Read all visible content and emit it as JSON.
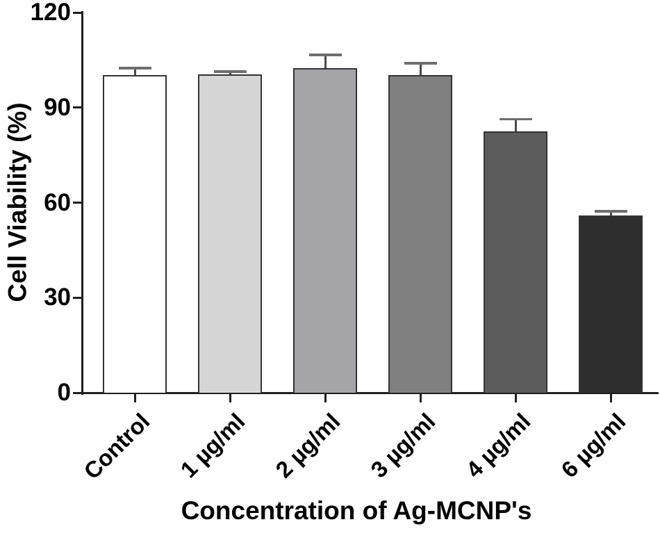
{
  "chart_data": {
    "type": "bar",
    "title": "",
    "xlabel": "Concentration of Ag-MCNP's",
    "ylabel": "Cell Viability (%)",
    "categories": [
      "Control",
      "1 µg/ml",
      "2 µg/ml",
      "3 µg/ml",
      "4 µg/ml",
      "6 µg/ml"
    ],
    "values": [
      100.2,
      100.4,
      102.4,
      100.2,
      82.4,
      55.9
    ],
    "errors_plus": [
      2.3,
      0.9,
      4.2,
      3.8,
      3.9,
      1.4
    ],
    "bar_colors": [
      "#ffffff",
      "#d6d6d6",
      "#a5a5a9",
      "#808080",
      "#5c5c5c",
      "#2e2e2e"
    ],
    "bar_border_color": "#333333",
    "error_stem_color": "#4a4a4a",
    "error_cap_color": "#6e6e6e",
    "axis_color": "#1f1f1f",
    "text_color": "#000000",
    "ylim": [
      0,
      120
    ],
    "yticks": [
      0,
      30,
      60,
      90,
      120
    ],
    "grid": false,
    "legend": null,
    "xtick_rotation_deg": 45
  }
}
